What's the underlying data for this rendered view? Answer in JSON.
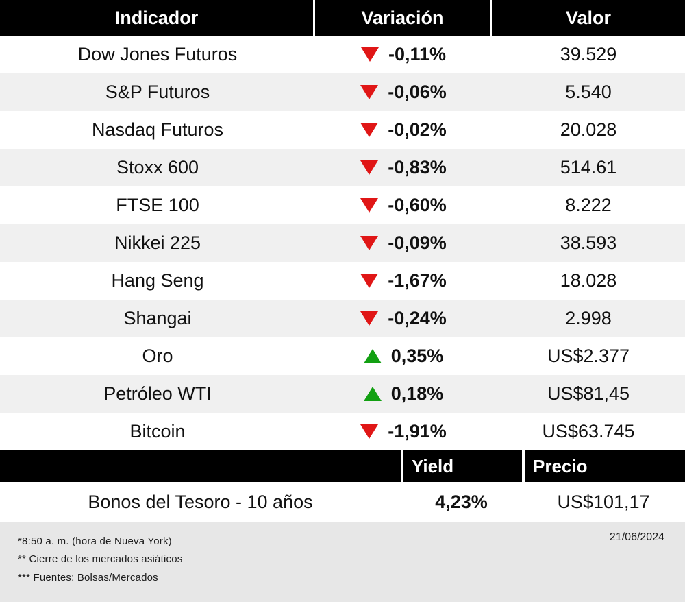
{
  "chart_data": {
    "type": "table",
    "headers": [
      "Indicador",
      "Variación",
      "Valor"
    ],
    "rows": [
      {
        "indicator": "Dow Jones Futuros",
        "direction": "down",
        "variation": "-0,11%",
        "value": "39.529"
      },
      {
        "indicator": "S&P Futuros",
        "direction": "down",
        "variation": "-0,06%",
        "value": "5.540"
      },
      {
        "indicator": "Nasdaq Futuros",
        "direction": "down",
        "variation": "-0,02%",
        "value": "20.028"
      },
      {
        "indicator": "Stoxx 600",
        "direction": "down",
        "variation": "-0,83%",
        "value": "514.61"
      },
      {
        "indicator": "FTSE 100",
        "direction": "down",
        "variation": "-0,60%",
        "value": "8.222"
      },
      {
        "indicator": "Nikkei 225",
        "direction": "down",
        "variation": "-0,09%",
        "value": "38.593"
      },
      {
        "indicator": "Hang Seng",
        "direction": "down",
        "variation": "-1,67%",
        "value": "18.028"
      },
      {
        "indicator": "Shangai",
        "direction": "down",
        "variation": "-0,24%",
        "value": "2.998"
      },
      {
        "indicator": "Oro",
        "direction": "up",
        "variation": "0,35%",
        "value": "US$2.377"
      },
      {
        "indicator": "Petróleo WTI",
        "direction": "up",
        "variation": "0,18%",
        "value": "US$81,45"
      },
      {
        "indicator": "Bitcoin",
        "direction": "down",
        "variation": "-1,91%",
        "value": "US$63.745"
      }
    ],
    "bond_headers": [
      "Yield",
      "Precio"
    ],
    "bond_row": {
      "indicator": "Bonos del Tesoro - 10 años",
      "yield": "4,23%",
      "price": "US$101,17"
    }
  },
  "footer": {
    "notes": [
      "*8:50 a. m. (hora de Nueva York)",
      "** Cierre de los mercados asiáticos",
      "*** Fuentes: Bolsas/Mercados"
    ],
    "date": "21/06/2024"
  },
  "colors": {
    "down": "#e01616",
    "up": "#12a012"
  }
}
